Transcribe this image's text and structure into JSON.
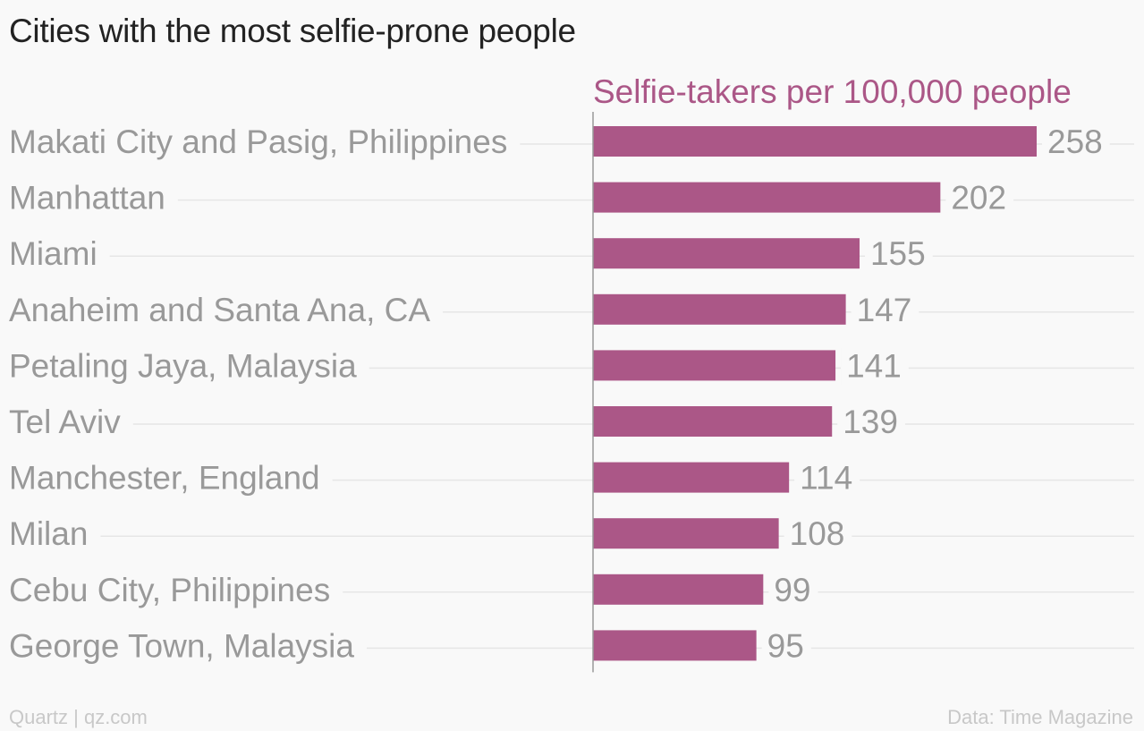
{
  "title": "Cities with the most selfie-prone people",
  "footer": {
    "source_credit": "Quartz | qz.com",
    "data_credit": "Data: Time Magazine"
  },
  "colors": {
    "bar": "#ab5787",
    "series_label": "#ab5787",
    "category_label": "#999999",
    "value_label": "#999999",
    "gridline": "#e6e6e6",
    "axis": "#999999",
    "background": "#f9f9f9"
  },
  "chart_data": {
    "type": "bar",
    "orientation": "horizontal",
    "categories": [
      "Makati City and Pasig, Philippines",
      "Manhattan",
      "Miami",
      "Anaheim and Santa Ana, CA",
      "Petaling Jaya, Malaysia",
      "Tel Aviv",
      "Manchester, England",
      "Milan",
      "Cebu City, Philippines",
      "George Town, Malaysia"
    ],
    "series": [
      {
        "name": "Selfie-takers per 100,000 people",
        "values": [
          258,
          202,
          155,
          147,
          141,
          139,
          114,
          108,
          99,
          95
        ]
      }
    ],
    "xlim": [
      0,
      300
    ],
    "grid": true,
    "legend": "none",
    "data_labels": true
  }
}
